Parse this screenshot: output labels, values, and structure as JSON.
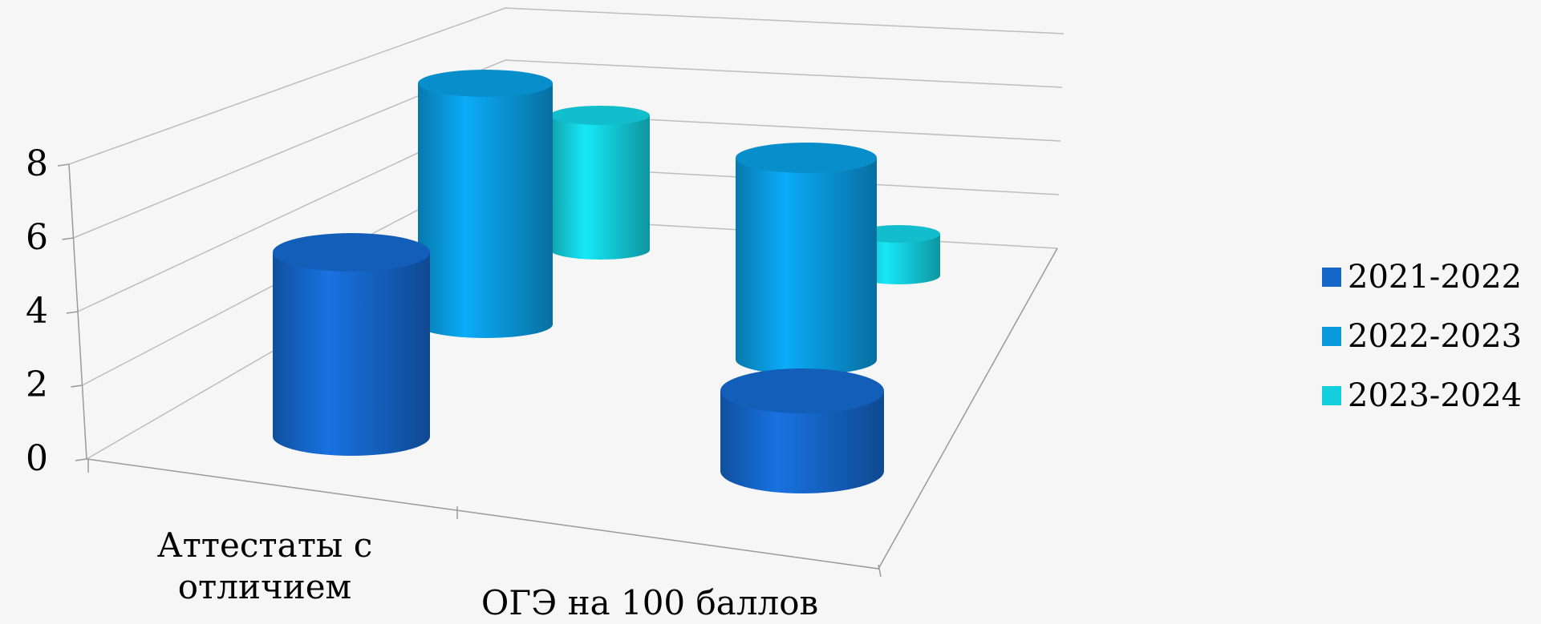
{
  "chart_data": {
    "type": "bar",
    "style": "3d-cylinder",
    "categories": [
      "Аттестаты с отличием",
      "ОГЭ на 100 баллов"
    ],
    "series": [
      {
        "name": "2021-2022",
        "color": "#1566c9",
        "values": [
          5,
          2
        ]
      },
      {
        "name": "2022-2023",
        "color": "#0a9ade",
        "values": [
          7,
          6
        ]
      },
      {
        "name": "2023-2024",
        "color": "#14cfdd",
        "values": [
          4,
          2
        ]
      }
    ],
    "y_ticks": [
      "0",
      "2",
      "4",
      "6",
      "8"
    ],
    "ylim": [
      0,
      8
    ],
    "grid": true,
    "legend_position": "right"
  }
}
